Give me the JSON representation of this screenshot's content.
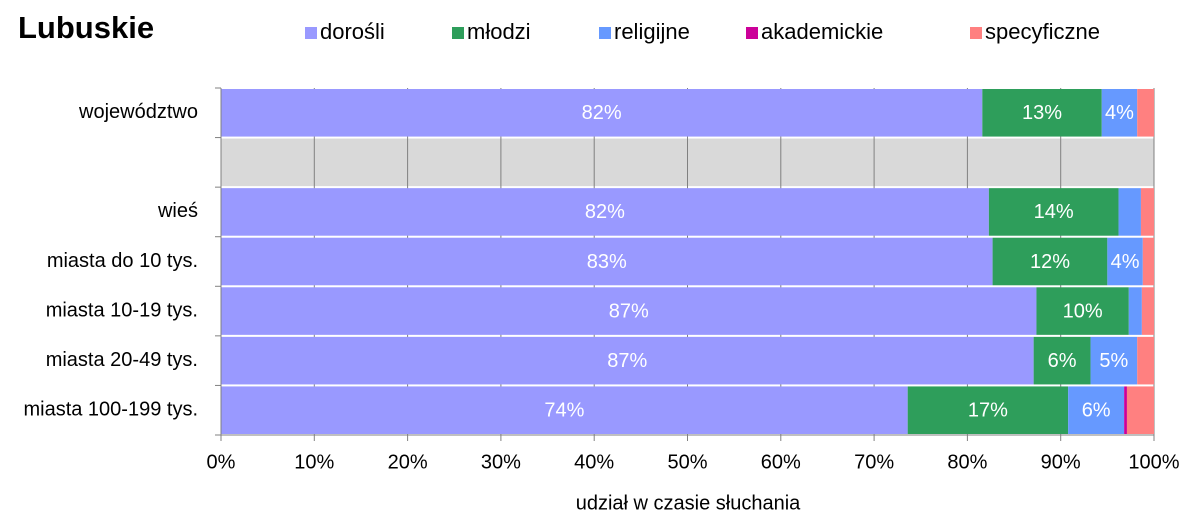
{
  "chart_data": {
    "type": "stacked-bar-horizontal",
    "title": "Lubuskie",
    "x_label": "udział w czasie słuchania",
    "legend": "top",
    "categories": [
      "województwo",
      null,
      "wieś",
      "miasta do 10 tys.",
      "miasta 10-19 tys.",
      "miasta 20-49 tys.",
      "miasta 100-199 tys."
    ],
    "series": [
      {
        "name": "dorośli",
        "color": "#9999ff",
        "values": [
          81.6,
          null,
          82.3,
          82.7,
          87.4,
          87.1,
          73.6
        ],
        "value_labels": [
          "82%",
          null,
          "82%",
          "83%",
          "87%",
          "87%",
          "74%"
        ]
      },
      {
        "name": "młodzi",
        "color": "#2e9e5b",
        "values": [
          12.8,
          null,
          13.9,
          12.3,
          9.9,
          6.1,
          17.2
        ],
        "value_labels": [
          "13%",
          null,
          "14%",
          "12%",
          "10%",
          "6%",
          "17%"
        ]
      },
      {
        "name": "religijne",
        "color": "#6699ff",
        "values": [
          3.8,
          null,
          2.4,
          3.8,
          1.4,
          5.0,
          6.0
        ],
        "value_labels": [
          "4%",
          null,
          null,
          "4%",
          null,
          "5%",
          "6%"
        ]
      },
      {
        "name": "akademickie",
        "color": "#cc0099",
        "values": [
          0,
          null,
          0,
          0,
          0,
          0,
          0.3
        ],
        "value_labels": [
          null,
          null,
          null,
          null,
          null,
          null,
          null
        ]
      },
      {
        "name": "specyficzne",
        "color": "#ff8080",
        "values": [
          1.8,
          null,
          1.4,
          1.2,
          1.3,
          1.8,
          2.9
        ],
        "value_labels": [
          null,
          null,
          null,
          null,
          null,
          null,
          null
        ]
      }
    ],
    "xlim": [
      0,
      100
    ],
    "xticks": [
      {
        "value": 0,
        "label": "0%"
      },
      {
        "value": 10,
        "label": "10%"
      },
      {
        "value": 20,
        "label": "20%"
      },
      {
        "value": 30,
        "label": "30%"
      },
      {
        "value": 40,
        "label": "40%"
      },
      {
        "value": 50,
        "label": "50%"
      },
      {
        "value": 60,
        "label": "60%"
      },
      {
        "value": 70,
        "label": "70%"
      },
      {
        "value": 80,
        "label": "80%"
      },
      {
        "value": 90,
        "label": "90%"
      },
      {
        "value": 100,
        "label": "100%"
      }
    ],
    "grid": true
  }
}
